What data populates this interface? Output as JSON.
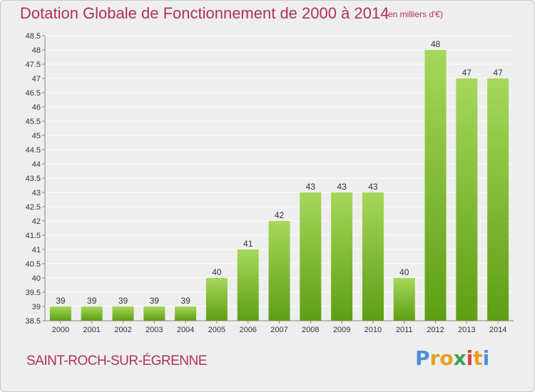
{
  "title": "Dotation Globale de Fonctionnement de 2000 à 2014",
  "subtitle": "(en milliers d'€)",
  "place": "SAINT-ROCH-SUR-ÉGRENNE",
  "logo_letters": [
    "P",
    "r",
    "o",
    "x",
    "i",
    "t",
    "i"
  ],
  "colors": {
    "title": "#b03060",
    "bar_light": "#a6d85a",
    "bar_dark": "#5e9e14",
    "grid": "#ffffff",
    "axis_text": "#333333",
    "logo": [
      "#4a90d9",
      "#e8a020",
      "#e8a020",
      "#3aa35a",
      "#d94040",
      "#e8a020",
      "#4a90d9"
    ]
  },
  "chart_data": {
    "type": "bar",
    "categories": [
      "2000",
      "2001",
      "2002",
      "2003",
      "2004",
      "2005",
      "2006",
      "2007",
      "2008",
      "2009",
      "2010",
      "2011",
      "2012",
      "2013",
      "2014"
    ],
    "values": [
      39,
      39,
      39,
      39,
      39,
      40,
      41,
      42,
      43,
      43,
      43,
      40,
      48,
      47,
      47
    ],
    "ylim": [
      38.5,
      48.5
    ],
    "yticks": [
      "38.5",
      "39",
      "39.5",
      "40",
      "40.5",
      "41",
      "41.5",
      "42",
      "42.5",
      "43",
      "43.5",
      "44",
      "44.5",
      "45",
      "45.5",
      "46",
      "46.5",
      "47",
      "47.5",
      "48",
      "48.5"
    ],
    "grid": true
  }
}
